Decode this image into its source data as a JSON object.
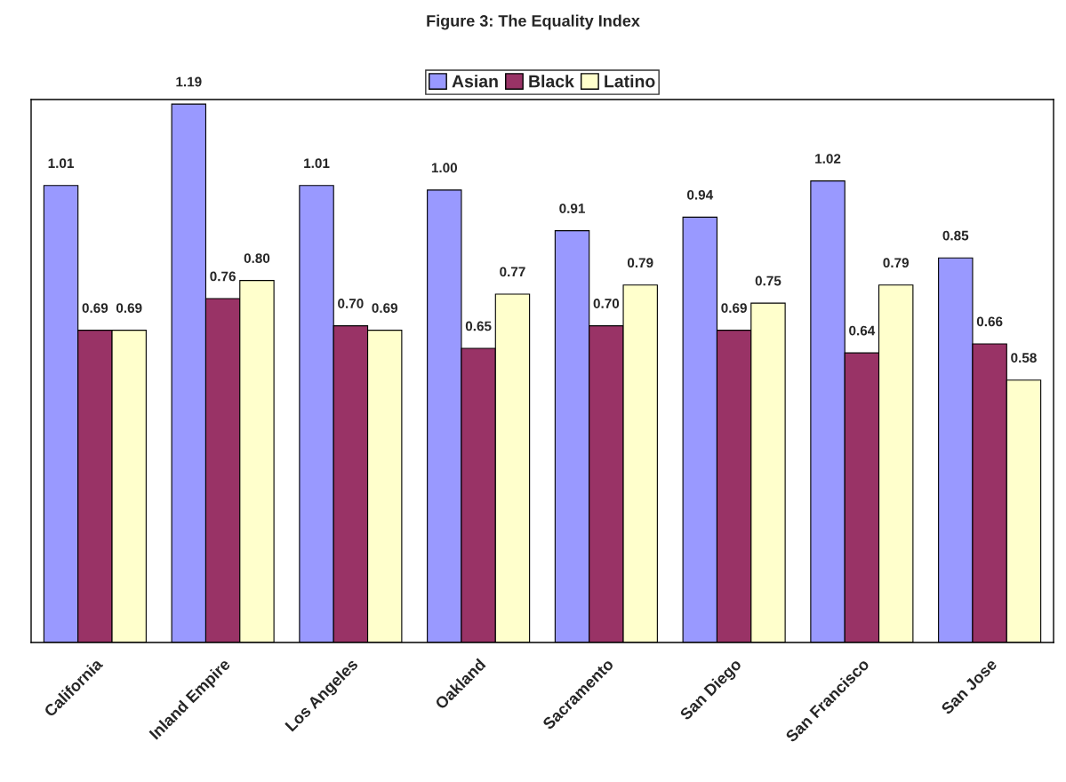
{
  "chart_data": {
    "type": "bar",
    "title": "Figure 3: The Equality Index",
    "categories": [
      "California",
      "Inland Empire",
      "Los Angeles",
      "Oakland",
      "Sacramento",
      "San Diego",
      "San Francisco",
      "San Jose"
    ],
    "series": [
      {
        "name": "Asian",
        "color": "#9999ff",
        "values": [
          1.01,
          1.19,
          1.01,
          1.0,
          0.91,
          0.94,
          1.02,
          0.85
        ],
        "value_labels": [
          "1.01",
          "1.19",
          "1.01",
          "1.00",
          "0.91",
          "0.94",
          "1.02",
          "0.85"
        ]
      },
      {
        "name": "Black",
        "color": "#993366",
        "values": [
          0.69,
          0.76,
          0.7,
          0.65,
          0.7,
          0.69,
          0.64,
          0.66
        ],
        "value_labels": [
          "0.69",
          "0.76",
          "0.70",
          "0.65",
          "0.70",
          "0.69",
          "0.64",
          "0.66"
        ]
      },
      {
        "name": "Latino",
        "color": "#ffffcc",
        "values": [
          0.69,
          0.8,
          0.69,
          0.77,
          0.79,
          0.75,
          0.79,
          0.58
        ],
        "value_labels": [
          "0.69",
          "0.80",
          "0.69",
          "0.77",
          "0.79",
          "0.75",
          "0.79",
          "0.58"
        ]
      }
    ],
    "ylim": [
      0,
      1.2
    ],
    "tick_labels": "x",
    "grid": false,
    "legend": "top"
  }
}
